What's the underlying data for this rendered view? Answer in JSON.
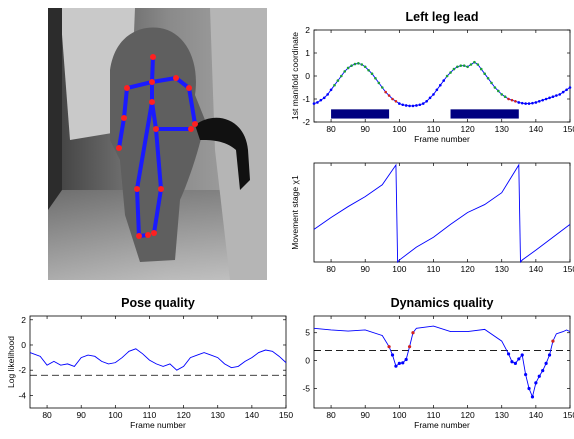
{
  "chart_data": [
    {
      "type": "image",
      "description_free": true,
      "skeleton_joints": [
        [
          153,
          57
        ],
        [
          152,
          82
        ],
        [
          176,
          78
        ],
        [
          127,
          88
        ],
        [
          189,
          88
        ],
        [
          152,
          102
        ],
        [
          124,
          118
        ],
        [
          195,
          124
        ],
        [
          156,
          129
        ],
        [
          119,
          148
        ],
        [
          191,
          129
        ],
        [
          137,
          189
        ],
        [
          161,
          189
        ],
        [
          139,
          236
        ],
        [
          148,
          235
        ],
        [
          154,
          233
        ]
      ],
      "skeleton_bones": [
        [
          0,
          1
        ],
        [
          1,
          2
        ],
        [
          1,
          3
        ],
        [
          2,
          4
        ],
        [
          4,
          7
        ],
        [
          3,
          6
        ],
        [
          6,
          9
        ],
        [
          1,
          5
        ],
        [
          5,
          8
        ],
        [
          8,
          10
        ],
        [
          8,
          12
        ],
        [
          5,
          11
        ],
        [
          11,
          13
        ],
        [
          12,
          15
        ],
        [
          13,
          14
        ]
      ]
    },
    {
      "type": "line",
      "title": "Left leg lead",
      "xlabel": "Frame number",
      "ylabel": "1st manifold coordinate",
      "xlim": [
        75,
        150
      ],
      "ylim": [
        -2,
        2
      ],
      "xticks": [
        80,
        90,
        100,
        110,
        120,
        130,
        140,
        150
      ],
      "yticks": [
        -2,
        -1,
        0,
        1,
        2
      ],
      "bars": [
        [
          80,
          97
        ],
        [
          115,
          135
        ]
      ],
      "bar_y": [
        -1.85,
        -1.45
      ],
      "series": [
        {
          "color": "#0000ff",
          "x": [
            75,
            76,
            77,
            78,
            79,
            80,
            81,
            82,
            83,
            84,
            85,
            86,
            87,
            88,
            89,
            90,
            91,
            92,
            93,
            94,
            95,
            96,
            97,
            98,
            99,
            100,
            101,
            102,
            103,
            104,
            105,
            106,
            107,
            108,
            109,
            110,
            111,
            112,
            113,
            114,
            115,
            116,
            117,
            118,
            119,
            120,
            121,
            122,
            123,
            124,
            125,
            126,
            127,
            128,
            129,
            130,
            131,
            132,
            133,
            134,
            135,
            136,
            137,
            138,
            139,
            140,
            141,
            142,
            143,
            144,
            145,
            146,
            147,
            148,
            149,
            150
          ],
          "y": [
            -1.2,
            -1.15,
            -1.05,
            -0.95,
            -0.8,
            -0.6,
            -0.4,
            -0.2,
            0.0,
            0.2,
            0.35,
            0.45,
            0.52,
            0.55,
            0.5,
            0.4,
            0.25,
            0.1,
            -0.1,
            -0.3,
            -0.5,
            -0.7,
            -0.85,
            -1.0,
            -1.1,
            -1.2,
            -1.25,
            -1.28,
            -1.3,
            -1.3,
            -1.28,
            -1.25,
            -1.2,
            -1.1,
            -0.95,
            -0.8,
            -0.6,
            -0.4,
            -0.2,
            0.0,
            0.15,
            0.3,
            0.4,
            0.45,
            0.45,
            0.4,
            0.5,
            0.6,
            0.5,
            0.3,
            0.1,
            -0.1,
            -0.3,
            -0.5,
            -0.65,
            -0.8,
            -0.9,
            -1.0,
            -1.05,
            -1.1,
            -1.15,
            -1.18,
            -1.2,
            -1.2,
            -1.18,
            -1.15,
            -1.1,
            -1.05,
            -1.0,
            -0.95,
            -0.9,
            -0.85,
            -0.8,
            -0.7,
            -0.6,
            -0.5
          ]
        }
      ]
    },
    {
      "type": "line",
      "xlabel": "",
      "ylabel": "Movement stage χ1",
      "xlim": [
        75,
        150
      ],
      "ylim": [
        0,
        1
      ],
      "xticks": [
        80,
        90,
        100,
        110,
        120,
        130,
        140,
        150
      ],
      "series": [
        {
          "color": "#0000ff",
          "x": [
            75,
            80,
            85,
            90,
            95,
            99,
            99.5,
            100,
            105,
            110,
            115,
            120,
            125,
            130,
            135,
            135.5,
            136,
            140,
            145,
            150
          ],
          "y": [
            0.33,
            0.45,
            0.56,
            0.66,
            0.78,
            0.98,
            0.0,
            0.02,
            0.15,
            0.25,
            0.38,
            0.5,
            0.58,
            0.7,
            0.98,
            0.0,
            0.02,
            0.12,
            0.25,
            0.38
          ]
        }
      ]
    },
    {
      "type": "line",
      "title": "Pose quality",
      "xlabel": "Frame number",
      "ylabel": "Log likelihood",
      "xlim": [
        75,
        150
      ],
      "ylim": [
        -5,
        2.3
      ],
      "xticks": [
        80,
        90,
        100,
        110,
        120,
        130,
        140,
        150
      ],
      "yticks": [
        -4,
        -2,
        0,
        2
      ],
      "threshold": -2.4,
      "series": [
        {
          "color": "#0000ff",
          "x": [
            75,
            78,
            80,
            82,
            84,
            86,
            88,
            90,
            92,
            94,
            96,
            98,
            100,
            102,
            104,
            106,
            108,
            110,
            112,
            114,
            116,
            118,
            120,
            122,
            124,
            126,
            128,
            130,
            132,
            134,
            136,
            138,
            140,
            142,
            144,
            146,
            148,
            150
          ],
          "y": [
            -0.6,
            -0.9,
            -1.6,
            -1.3,
            -1.6,
            -1.5,
            -1.7,
            -1.0,
            -0.8,
            -0.9,
            -1.3,
            -1.5,
            -1.4,
            -1.0,
            -0.5,
            -0.3,
            -0.7,
            -1.2,
            -1.5,
            -1.7,
            -1.5,
            -2.0,
            -1.7,
            -1.0,
            -0.8,
            -0.6,
            -0.8,
            -1.0,
            -1.5,
            -1.8,
            -1.7,
            -1.3,
            -1.0,
            -0.6,
            -0.4,
            -0.5,
            -0.9,
            -1.4
          ]
        }
      ]
    },
    {
      "type": "line",
      "title": "Dynamics quality",
      "xlabel": "Frame number",
      "ylabel": "",
      "xlim": [
        75,
        150
      ],
      "ylim": [
        -8.5,
        8
      ],
      "xticks": [
        80,
        90,
        100,
        110,
        120,
        130,
        140,
        150
      ],
      "yticks": [
        -5,
        0,
        5
      ],
      "threshold": 1.8,
      "series": [
        {
          "color": "#0000ff",
          "x": [
            75,
            80,
            85,
            90,
            95,
            97,
            98,
            99,
            100,
            101,
            102,
            103,
            104,
            105,
            110,
            115,
            120,
            125,
            130,
            132,
            133,
            134,
            135,
            136,
            137,
            138,
            139,
            140,
            141,
            142,
            143,
            144,
            145,
            146,
            147,
            148,
            149,
            150
          ],
          "y": [
            5.8,
            5.5,
            5.3,
            5.5,
            4.5,
            2.5,
            1.0,
            -1.0,
            -0.5,
            -0.4,
            0.2,
            2.5,
            5.0,
            5.8,
            6.2,
            5.2,
            5.2,
            5.6,
            3.5,
            1.2,
            -0.2,
            -0.5,
            0.3,
            1.0,
            -2.5,
            -5.0,
            -6.5,
            -4.0,
            -2.8,
            -1.8,
            -0.5,
            1.0,
            3.5,
            4.8,
            5.0,
            5.2,
            5.5,
            5.2
          ]
        }
      ]
    }
  ]
}
